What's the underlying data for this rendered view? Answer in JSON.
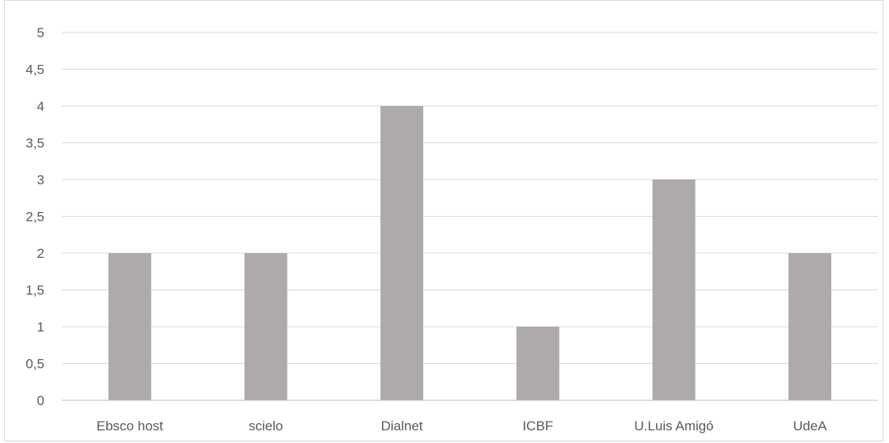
{
  "chart_data": {
    "type": "bar",
    "title": "",
    "xlabel": "",
    "ylabel": "",
    "categories": [
      "Ebsco host",
      "scielo",
      "Dialnet",
      "ICBF",
      "U.Luis Amigó",
      "UdeA"
    ],
    "values": [
      2,
      2,
      4,
      1,
      3,
      2
    ],
    "ylim": [
      0,
      5
    ],
    "yticks": [
      "0",
      "0,5",
      "1",
      "1,5",
      "2",
      "2,5",
      "3",
      "3,5",
      "4",
      "4,5",
      "5"
    ],
    "grid": true,
    "legend": "none",
    "colors": {
      "bar": "#aeaaaa",
      "grid": "#d9d9d9",
      "axis": "#bfbfbf",
      "text": "#595959"
    }
  }
}
